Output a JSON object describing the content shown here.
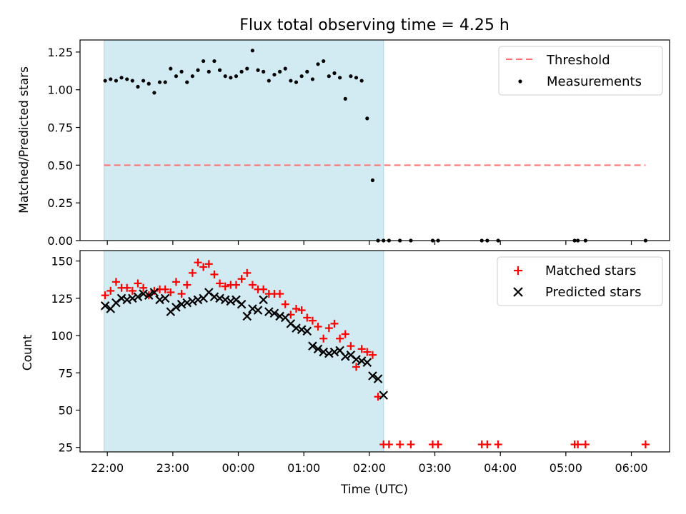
{
  "title": "Flux total observing time = 4.25 h",
  "colors": {
    "shade": "#add8e6",
    "threshold": "#ff7070",
    "matched": "#ff0000",
    "predicted": "#000000",
    "measurement": "#000000"
  },
  "chart_data": [
    {
      "type": "scatter",
      "panel": "top",
      "ylabel": "Matched/Predicted stars",
      "xlabel": "",
      "xlim": [
        "21:35",
        "06:35"
      ],
      "ylim": [
        0,
        1.33
      ],
      "yticks": [
        "0.00",
        "0.25",
        "0.50",
        "0.75",
        "1.00",
        "1.25"
      ],
      "shaded_interval": [
        "21:57",
        "02:13"
      ],
      "legend": {
        "placement": "top-right",
        "entries": [
          "Threshold",
          "Measurements"
        ]
      },
      "threshold": {
        "name": "Threshold",
        "x": [
          "21:57",
          "06:13"
        ],
        "y": 0.5,
        "style": "dashed"
      },
      "series": [
        {
          "name": "Measurements",
          "marker": "dot",
          "x": [
            "21:58",
            "22:03",
            "22:08",
            "22:13",
            "22:18",
            "22:23",
            "22:28",
            "22:33",
            "22:38",
            "22:43",
            "22:48",
            "22:53",
            "22:58",
            "23:03",
            "23:08",
            "23:13",
            "23:18",
            "23:23",
            "23:28",
            "23:33",
            "23:38",
            "23:43",
            "23:48",
            "23:53",
            "23:58",
            "00:03",
            "00:08",
            "00:13",
            "00:18",
            "00:23",
            "00:28",
            "00:33",
            "00:38",
            "00:43",
            "00:48",
            "00:53",
            "00:58",
            "01:03",
            "01:08",
            "01:13",
            "01:18",
            "01:23",
            "01:28",
            "01:33",
            "01:38",
            "01:43",
            "01:48",
            "01:53",
            "01:58",
            "02:03",
            "02:08",
            "02:13",
            "02:18",
            "02:28",
            "02:38",
            "02:58",
            "03:03",
            "03:43",
            "03:48",
            "03:58",
            "05:08",
            "05:11",
            "05:18",
            "06:13"
          ],
          "y": [
            1.06,
            1.07,
            1.06,
            1.08,
            1.07,
            1.06,
            1.02,
            1.06,
            1.04,
            0.98,
            1.05,
            1.05,
            1.14,
            1.09,
            1.12,
            1.05,
            1.09,
            1.13,
            1.19,
            1.12,
            1.19,
            1.13,
            1.09,
            1.08,
            1.09,
            1.12,
            1.14,
            1.26,
            1.13,
            1.12,
            1.06,
            1.1,
            1.12,
            1.14,
            1.06,
            1.05,
            1.09,
            1.12,
            1.07,
            1.17,
            1.19,
            1.09,
            1.11,
            1.08,
            0.94,
            1.09,
            1.08,
            1.06,
            0.81,
            0.4,
            0,
            0,
            0,
            0,
            0,
            0,
            0,
            0,
            0,
            0,
            0,
            0,
            0,
            0
          ]
        }
      ]
    },
    {
      "type": "scatter",
      "panel": "bottom",
      "ylabel": "Count",
      "xlabel": "Time (UTC)",
      "xlim": [
        "21:35",
        "06:35"
      ],
      "ylim": [
        22,
        157
      ],
      "yticks": [
        "25",
        "50",
        "75",
        "100",
        "125",
        "150"
      ],
      "xticks": [
        "22:00",
        "23:00",
        "00:00",
        "01:00",
        "02:00",
        "03:00",
        "04:00",
        "05:00",
        "06:00"
      ],
      "shaded_interval": [
        "21:57",
        "02:13"
      ],
      "legend": {
        "placement": "top-right",
        "entries": [
          "Matched stars",
          "Predicted stars"
        ]
      },
      "series": [
        {
          "name": "Matched stars",
          "marker": "plus",
          "x": [
            "21:58",
            "22:03",
            "22:08",
            "22:13",
            "22:18",
            "22:23",
            "22:28",
            "22:33",
            "22:38",
            "22:43",
            "22:48",
            "22:53",
            "22:58",
            "23:03",
            "23:08",
            "23:13",
            "23:18",
            "23:23",
            "23:28",
            "23:33",
            "23:38",
            "23:43",
            "23:48",
            "23:53",
            "23:58",
            "00:03",
            "00:08",
            "00:13",
            "00:18",
            "00:23",
            "00:28",
            "00:33",
            "00:38",
            "00:43",
            "00:48",
            "00:53",
            "00:58",
            "01:03",
            "01:08",
            "01:13",
            "01:18",
            "01:23",
            "01:28",
            "01:33",
            "01:38",
            "01:43",
            "01:48",
            "01:53",
            "01:58",
            "02:03",
            "02:08",
            "02:13",
            "02:18",
            "02:28",
            "02:38",
            "02:58",
            "03:03",
            "03:43",
            "03:48",
            "03:58",
            "05:08",
            "05:11",
            "05:18",
            "06:13"
          ],
          "y": [
            127,
            130,
            136,
            132,
            132,
            130,
            135,
            132,
            127,
            130,
            131,
            131,
            129,
            136,
            128,
            134,
            142,
            149,
            146,
            148,
            141,
            135,
            133,
            134,
            134,
            138,
            142,
            134,
            131,
            131,
            128,
            128,
            128,
            121,
            114,
            118,
            117,
            112,
            110,
            106,
            98,
            105,
            108,
            98,
            101,
            93,
            79,
            91,
            89,
            87,
            59,
            27,
            27,
            27,
            27,
            27,
            27,
            27,
            27,
            27,
            27,
            27,
            27,
            27
          ]
        },
        {
          "name": "Predicted stars",
          "marker": "x",
          "x": [
            "21:58",
            "22:03",
            "22:08",
            "22:13",
            "22:18",
            "22:23",
            "22:28",
            "22:33",
            "22:38",
            "22:43",
            "22:48",
            "22:53",
            "22:58",
            "23:03",
            "23:08",
            "23:13",
            "23:18",
            "23:23",
            "23:28",
            "23:33",
            "23:38",
            "23:43",
            "23:48",
            "23:53",
            "23:58",
            "00:03",
            "00:08",
            "00:13",
            "00:18",
            "00:23",
            "00:28",
            "00:33",
            "00:38",
            "00:43",
            "00:48",
            "00:53",
            "00:58",
            "01:03",
            "01:08",
            "01:13",
            "01:18",
            "01:23",
            "01:28",
            "01:33",
            "01:38",
            "01:43",
            "01:48",
            "01:53",
            "01:58",
            "02:03",
            "02:08",
            "02:13"
          ],
          "y": [
            120,
            118,
            122,
            125,
            124,
            125,
            126,
            128,
            127,
            129,
            124,
            125,
            116,
            119,
            121,
            122,
            123,
            124,
            125,
            129,
            126,
            125,
            124,
            123,
            124,
            121,
            113,
            118,
            117,
            124,
            116,
            115,
            113,
            112,
            108,
            105,
            104,
            103,
            93,
            91,
            89,
            88,
            89,
            90,
            86,
            87,
            84,
            83,
            82,
            73,
            71,
            60
          ]
        }
      ]
    }
  ]
}
